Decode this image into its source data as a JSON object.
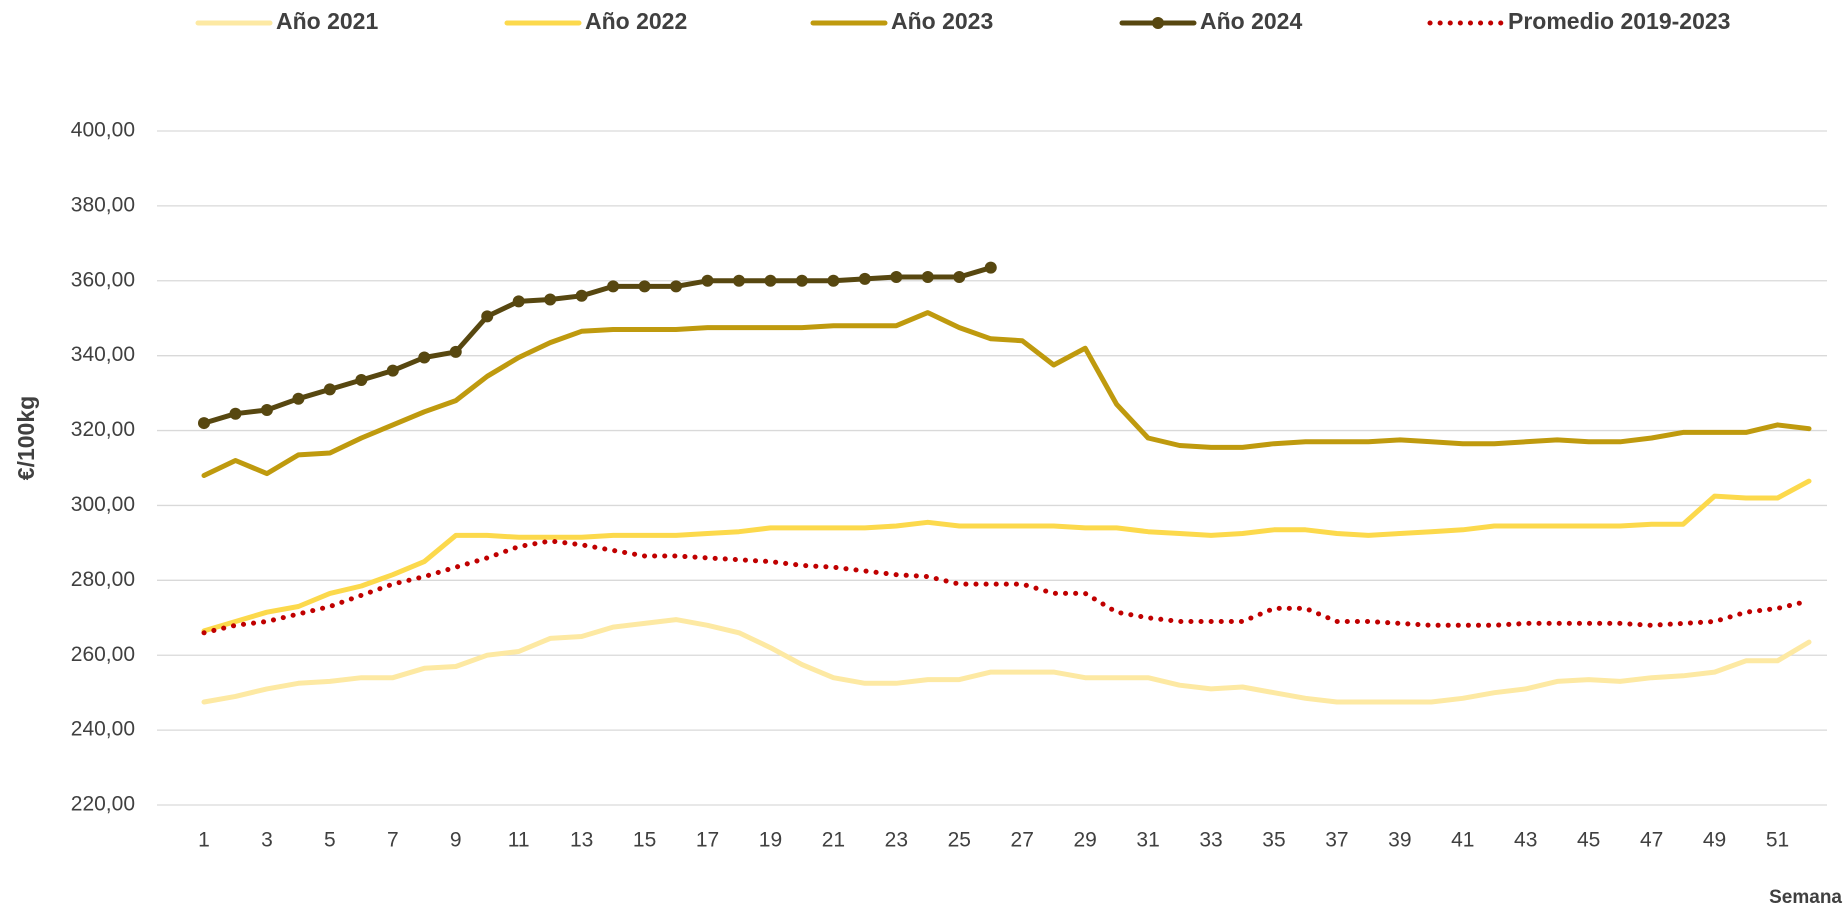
{
  "chart_data": {
    "type": "line",
    "y_label": "€/100kg",
    "x_label": "Semana",
    "categories": [
      1,
      null,
      3,
      null,
      5,
      null,
      7,
      null,
      9,
      null,
      11,
      null,
      13,
      null,
      15,
      null,
      17,
      null,
      19,
      null,
      21,
      null,
      23,
      null,
      25,
      null,
      27,
      null,
      29,
      null,
      31,
      null,
      33,
      null,
      35,
      null,
      37,
      null,
      39,
      null,
      41,
      null,
      43,
      null,
      45,
      null,
      47,
      null,
      49,
      null,
      51,
      null
    ],
    "ylim": [
      220,
      400
    ],
    "yticks": [
      {
        "value": 220,
        "label": "220,00"
      },
      {
        "value": 240,
        "label": "240,00"
      },
      {
        "value": 260,
        "label": "260,00"
      },
      {
        "value": 280,
        "label": "280,00"
      },
      {
        "value": 300,
        "label": "300,00"
      },
      {
        "value": 320,
        "label": "320,00"
      },
      {
        "value": 340,
        "label": "340,00"
      },
      {
        "value": 360,
        "label": "360,00"
      },
      {
        "value": 380,
        "label": "380,00"
      },
      {
        "value": 400,
        "label": "400,00"
      }
    ],
    "grid": true,
    "legend": "top",
    "series": [
      {
        "name": "Año 2021",
        "color": "#fde9a3",
        "style": "solid",
        "values": [
          247.5,
          249,
          251,
          252.5,
          253,
          254,
          254,
          256.5,
          257,
          260,
          261,
          264.5,
          265,
          267.5,
          268.5,
          269.5,
          268,
          266,
          262,
          257.5,
          254,
          252.5,
          252.5,
          253.5,
          253.5,
          255.5,
          255.5,
          255.5,
          254,
          254,
          254,
          252,
          251,
          251.5,
          250,
          248.5,
          247.5,
          247.5,
          247.5,
          247.5,
          248.5,
          250,
          251,
          253,
          253.5,
          253,
          254,
          254.5,
          255.5,
          258.5,
          258.5,
          263.5
        ]
      },
      {
        "name": "Año 2022",
        "color": "#fcd94c",
        "style": "solid",
        "values": [
          266.5,
          269,
          271.5,
          273,
          276.5,
          278.5,
          281.5,
          285,
          292,
          292,
          291.5,
          291.5,
          291.5,
          292,
          292,
          292,
          292.5,
          293,
          294,
          294,
          294,
          294,
          294.5,
          295.5,
          294.5,
          294.5,
          294.5,
          294.5,
          294,
          294,
          293,
          292.5,
          292,
          292.5,
          293.5,
          293.5,
          292.5,
          292,
          292.5,
          293,
          293.5,
          294.5,
          294.5,
          294.5,
          294.5,
          294.5,
          295,
          295,
          302.5,
          302,
          302,
          306.5
        ]
      },
      {
        "name": "Año 2023",
        "color": "#bf9a0e",
        "style": "solid",
        "values": [
          308,
          312,
          308.5,
          313.5,
          314,
          318,
          321.5,
          325,
          328,
          334.5,
          339.5,
          343.5,
          346.5,
          347,
          347,
          347,
          347.5,
          347.5,
          347.5,
          347.5,
          348,
          348,
          348,
          351.5,
          347.5,
          344.5,
          344,
          337.5,
          342,
          327,
          318,
          316,
          315.5,
          315.5,
          316.5,
          317,
          317,
          317,
          317.5,
          317,
          316.5,
          316.5,
          317,
          317.5,
          317,
          317,
          318,
          319.5,
          319.5,
          319.5,
          321.5,
          320.5
        ]
      },
      {
        "name": "Año 2024",
        "color": "#574710",
        "style": "markers",
        "values": [
          322,
          324.5,
          325.5,
          328.5,
          331,
          333.5,
          336,
          339.5,
          341,
          350.5,
          354.5,
          355,
          356,
          358.5,
          358.5,
          358.5,
          360,
          360,
          360,
          360,
          360,
          360.5,
          361,
          361,
          361,
          363.5,
          null,
          null,
          null,
          null,
          null,
          null,
          null,
          null,
          null,
          null,
          null,
          null,
          null,
          null,
          null,
          null,
          null,
          null,
          null,
          null,
          null,
          null,
          null,
          null,
          null,
          null
        ]
      },
      {
        "name": "Promedio 2019-2023",
        "color": "#c00000",
        "style": "dotted",
        "values": [
          266,
          268,
          269,
          271,
          273,
          276,
          279,
          281,
          283.5,
          286,
          289,
          290.5,
          289.5,
          288,
          286.5,
          286.5,
          286,
          285.5,
          285,
          284,
          283.5,
          282.5,
          281.5,
          281,
          279,
          279,
          279,
          276.5,
          276.5,
          271.5,
          270,
          269,
          269,
          269,
          272.5,
          272.5,
          269,
          269,
          268.5,
          268,
          268,
          268,
          268.5,
          268.5,
          268.5,
          268.5,
          268,
          268.5,
          269,
          271.5,
          272.5,
          274.5
        ]
      }
    ]
  }
}
